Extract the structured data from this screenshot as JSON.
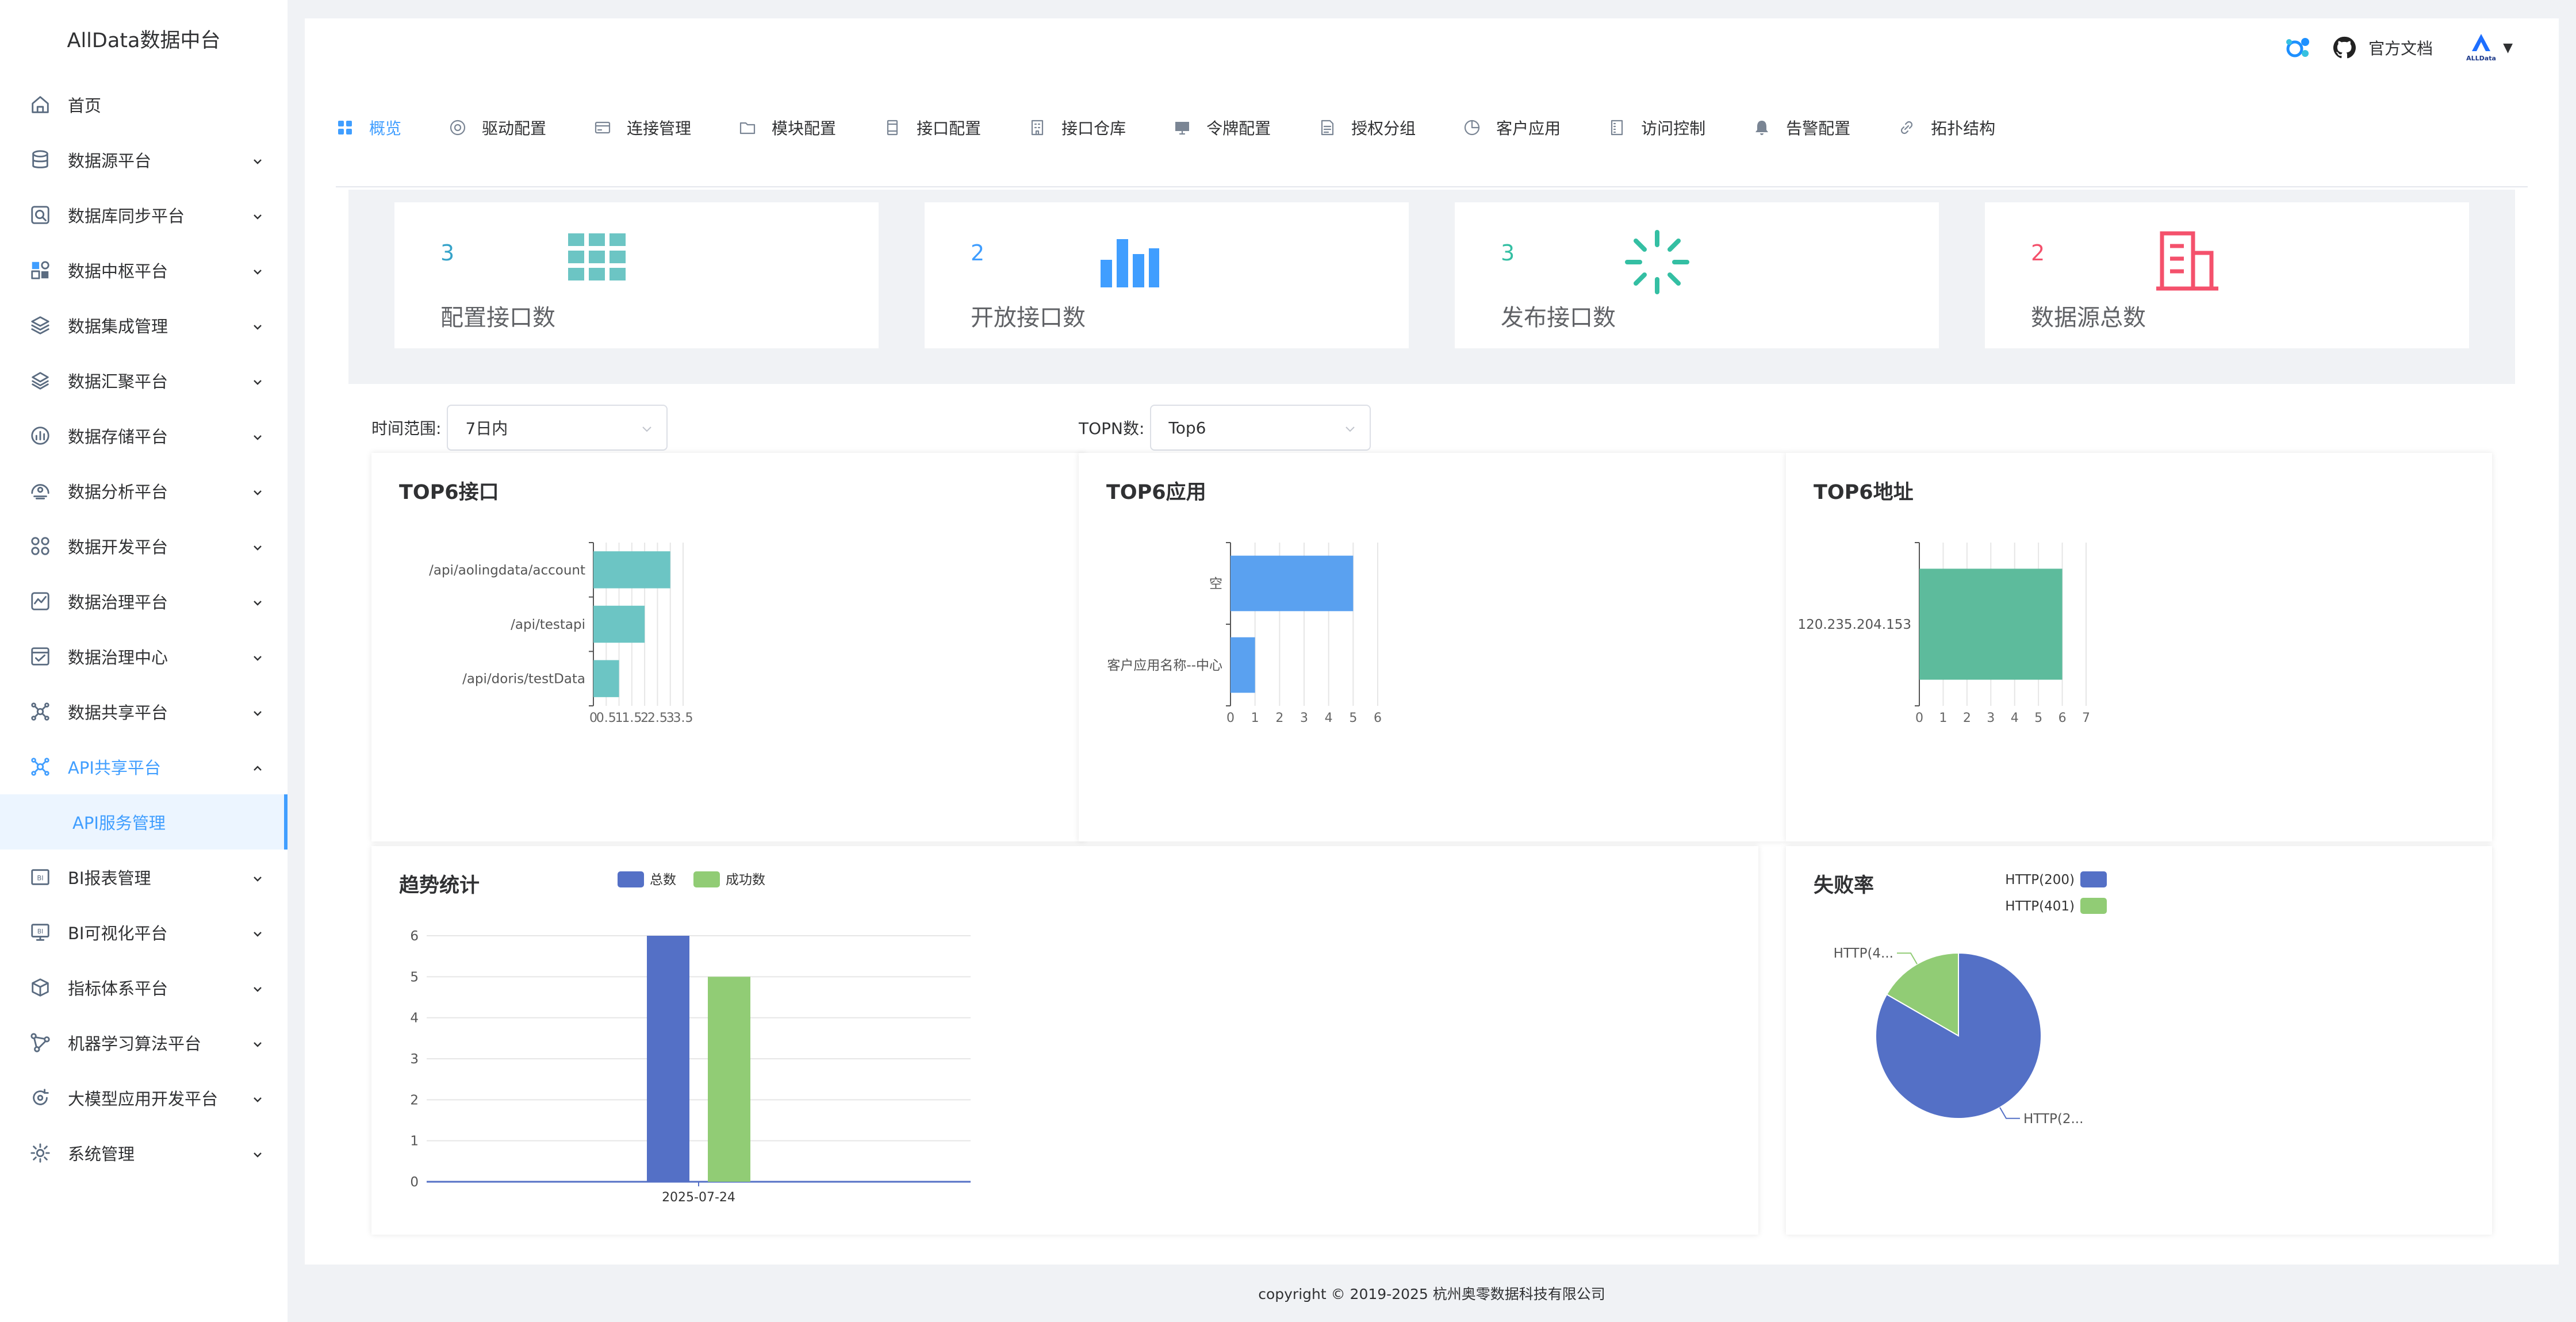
{
  "app": {
    "title": "AllData数据中台"
  },
  "sidebar": {
    "items": [
      {
        "label": "首页",
        "icon": "home-icon"
      },
      {
        "label": "数据源平台",
        "icon": "database-icon"
      },
      {
        "label": "数据库同步平台",
        "icon": "sync-search-icon"
      },
      {
        "label": "数据中枢平台",
        "icon": "blocks-icon"
      },
      {
        "label": "数据集成管理",
        "icon": "layers-icon"
      },
      {
        "label": "数据汇聚平台",
        "icon": "layers-alt-icon"
      },
      {
        "label": "数据存储平台",
        "icon": "storage-chart-icon"
      },
      {
        "label": "数据分析平台",
        "icon": "analysis-icon"
      },
      {
        "label": "数据开发平台",
        "icon": "dev-grid-icon"
      },
      {
        "label": "数据治理平台",
        "icon": "governance-icon"
      },
      {
        "label": "数据治理中心",
        "icon": "check-board-icon"
      },
      {
        "label": "数据共享平台",
        "icon": "share-network-icon"
      },
      {
        "label": "API共享平台",
        "icon": "api-network-icon"
      },
      {
        "label": "BI报表管理",
        "icon": "bi-report-icon"
      },
      {
        "label": "BI可视化平台",
        "icon": "bi-screen-icon"
      },
      {
        "label": "指标体系平台",
        "icon": "cube-icon"
      },
      {
        "label": "机器学习算法平台",
        "icon": "ml-graph-icon"
      },
      {
        "label": "大模型应用开发平台",
        "icon": "llm-cycle-icon"
      },
      {
        "label": "系统管理",
        "icon": "settings-icon"
      }
    ],
    "sub_item": "API服务管理"
  },
  "header": {
    "doc_link": "官方文档",
    "avatar_text": "ALLData"
  },
  "tabs": [
    {
      "label": "概览",
      "icon": "grid-icon"
    },
    {
      "label": "驱动配置",
      "icon": "driver-icon"
    },
    {
      "label": "连接管理",
      "icon": "card-icon"
    },
    {
      "label": "模块配置",
      "icon": "folder-icon"
    },
    {
      "label": "接口配置",
      "icon": "film-icon"
    },
    {
      "label": "接口仓库",
      "icon": "building-icon"
    },
    {
      "label": "令牌配置",
      "icon": "monitor-icon"
    },
    {
      "label": "授权分组",
      "icon": "document-icon"
    },
    {
      "label": "客户应用",
      "icon": "pie-icon"
    },
    {
      "label": "访问控制",
      "icon": "list-icon"
    },
    {
      "label": "告警配置",
      "icon": "bell-icon"
    },
    {
      "label": "拓扑结构",
      "icon": "link-icon"
    }
  ],
  "stats": [
    {
      "value": "3",
      "label": "配置接口数",
      "color": "#36a3c9",
      "icon": "grid-apps-icon"
    },
    {
      "value": "2",
      "label": "开放接口数",
      "color": "#409eff",
      "icon": "bar-chart-icon"
    },
    {
      "value": "3",
      "label": "发布接口数",
      "color": "#34bfa3",
      "icon": "loading-icon"
    },
    {
      "value": "2",
      "label": "数据源总数",
      "color": "#f4516c",
      "icon": "office-building-icon"
    }
  ],
  "filters": {
    "time_label": "时间范围:",
    "time_value": "7日内",
    "topn_label": "TOPN数:",
    "topn_value": "Top6"
  },
  "charts": {
    "top_interface": {
      "title": "TOP6接口",
      "categories": [
        "/api/aolingdata/account",
        "/api/testapi",
        "/api/doris/testData"
      ],
      "values": [
        3,
        2,
        1
      ],
      "xticks": [
        "0",
        "0.5",
        "1",
        "1.5",
        "2",
        "2.5",
        "3",
        "3.5"
      ],
      "color": "#6cc5c4"
    },
    "top_app": {
      "title": "TOP6应用",
      "categories": [
        "空",
        "客户应用名称--中心"
      ],
      "values": [
        5,
        1
      ],
      "xticks": [
        "0",
        "1",
        "2",
        "3",
        "4",
        "5",
        "6"
      ],
      "color": "#5aa1f0"
    },
    "top_addr": {
      "title": "TOP6地址",
      "categories": [
        "120.235.204.153"
      ],
      "values": [
        6
      ],
      "xticks": [
        "0",
        "1",
        "2",
        "3",
        "4",
        "5",
        "6",
        "7"
      ],
      "color": "#5dbb9c"
    },
    "trend": {
      "title": "趋势统计",
      "legend": [
        "总数",
        "成功数"
      ],
      "colors": [
        "#5470c6",
        "#91cc75"
      ],
      "x": [
        "2025-07-24"
      ],
      "total": [
        6
      ],
      "success": [
        5
      ],
      "yticks": [
        "0",
        "1",
        "2",
        "3",
        "4",
        "5",
        "6"
      ]
    },
    "failure": {
      "title": "失败率",
      "legend": [
        "HTTP(200)",
        "HTTP(401)"
      ],
      "colors": [
        "#5470c6",
        "#91cc75"
      ],
      "values": [
        5,
        1
      ],
      "slice_labels": [
        "HTTP(2...",
        "HTTP(4..."
      ]
    }
  },
  "chart_data": [
    {
      "type": "bar",
      "title": "TOP6接口",
      "categories": [
        "/api/aolingdata/account",
        "/api/testapi",
        "/api/doris/testData"
      ],
      "values": [
        3,
        2,
        1
      ],
      "xlim": [
        0,
        3.5
      ]
    },
    {
      "type": "bar",
      "title": "TOP6应用",
      "categories": [
        "空",
        "客户应用名称--中心"
      ],
      "values": [
        5,
        1
      ],
      "xlim": [
        0,
        6
      ]
    },
    {
      "type": "bar",
      "title": "TOP6地址",
      "categories": [
        "120.235.204.153"
      ],
      "values": [
        6
      ],
      "xlim": [
        0,
        7
      ]
    },
    {
      "type": "bar",
      "title": "趋势统计",
      "categories": [
        "2025-07-24"
      ],
      "series": [
        {
          "name": "总数",
          "values": [
            6
          ]
        },
        {
          "name": "成功数",
          "values": [
            5
          ]
        }
      ],
      "ylim": [
        0,
        6
      ]
    },
    {
      "type": "pie",
      "title": "失败率",
      "categories": [
        "HTTP(200)",
        "HTTP(401)"
      ],
      "values": [
        5,
        1
      ]
    }
  ],
  "footer": {
    "text": "copyright © 2019-2025 杭州奥零数据科技有限公司"
  }
}
